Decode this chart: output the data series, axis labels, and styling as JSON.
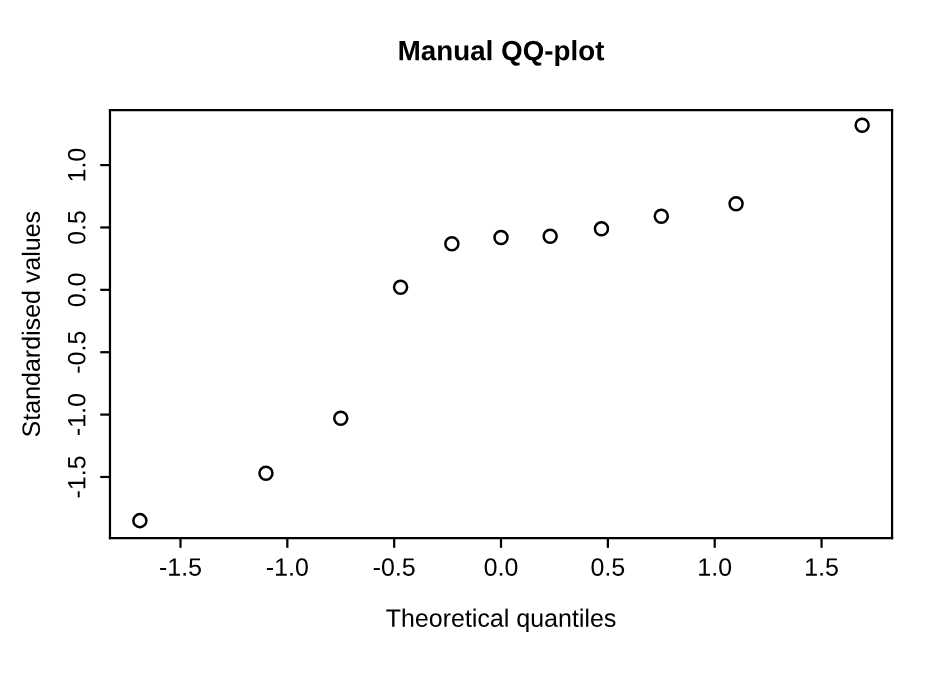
{
  "chart_data": {
    "type": "scatter",
    "title": "Manual QQ-plot",
    "xlabel": "Theoretical quantiles",
    "ylabel": "Standardised values",
    "x": [
      -1.69,
      -1.1,
      -0.75,
      -0.47,
      -0.23,
      0,
      0.23,
      0.47,
      0.75,
      1.1,
      1.69
    ],
    "values": [
      -1.85,
      -1.47,
      -1.03,
      0.02,
      0.37,
      0.42,
      0.43,
      0.49,
      0.59,
      0.69,
      1.32
    ],
    "color": "#000000",
    "marker": "circle",
    "grid": false,
    "xlim": [
      -1.83,
      1.83
    ],
    "ylim": [
      -1.99,
      1.44
    ],
    "xticks": [
      -1.5,
      {
        "value": -1,
        "label": "-1.0"
      },
      -0.5,
      {
        "value": 0,
        "label": "0.0"
      },
      0.5,
      {
        "value": 1,
        "label": "1.0"
      },
      1.5
    ],
    "yticks": [
      -1.5,
      {
        "value": -1,
        "label": "-1.0"
      },
      -0.5,
      {
        "value": 0,
        "label": "0.0"
      },
      0.5,
      {
        "value": 1,
        "label": "1.0"
      }
    ]
  }
}
